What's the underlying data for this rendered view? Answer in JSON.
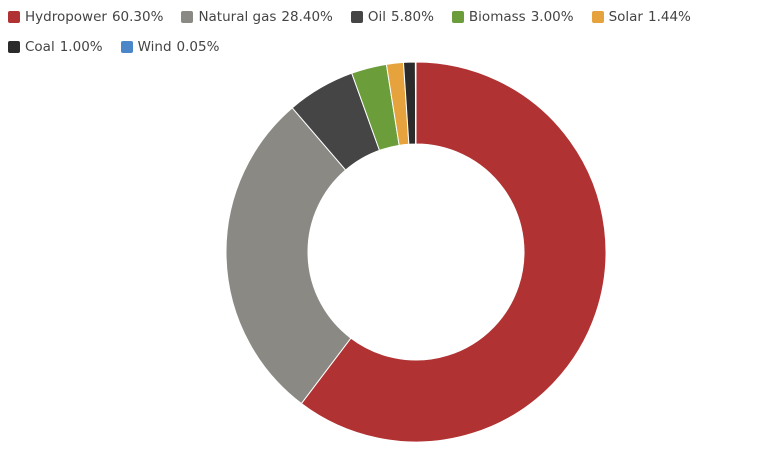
{
  "chart_data": {
    "type": "pie",
    "categories": [
      "Hydropower",
      "Natural gas",
      "Oil",
      "Biomass",
      "Solar",
      "Coal",
      "Wind"
    ],
    "values": [
      60.3,
      28.4,
      5.8,
      3.0,
      1.44,
      1.0,
      0.05
    ],
    "value_labels": [
      "60.30%",
      "28.40%",
      "5.80%",
      "3.00%",
      "1.44%",
      "1.00%",
      "0.05%"
    ],
    "colors": [
      "#b03232",
      "#8b8984",
      "#454545",
      "#6b9e3b",
      "#e6a23c",
      "#2b2b2b",
      "#4a86c8"
    ],
    "donut": true,
    "legend": "top-left"
  }
}
